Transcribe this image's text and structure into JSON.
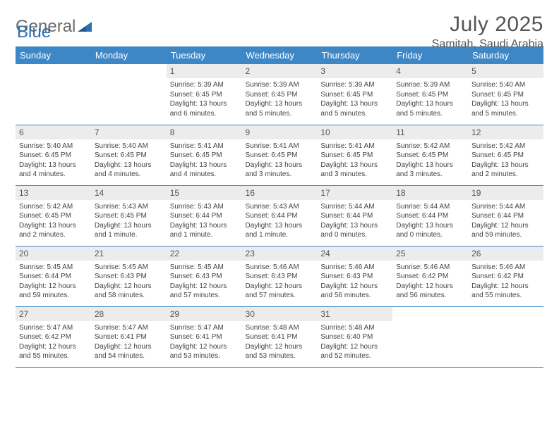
{
  "branding": {
    "logo_word1": "General",
    "logo_word2": "Blue",
    "logo_colors": {
      "word1": "#6b6b6b",
      "word2": "#2f6fb0",
      "mark": "#2f6fb0"
    }
  },
  "header": {
    "month_title": "July 2025",
    "location": "Samitah, Saudi Arabia"
  },
  "styling": {
    "header_bg": "#3d87c7",
    "header_text": "#ffffff",
    "day_band_bg": "#ececec",
    "row_border": "#3d87c7",
    "body_text": "#444444",
    "page_bg": "#ffffff",
    "title_fontsize": 30,
    "location_fontsize": 16,
    "th_fontsize": 13,
    "daynum_fontsize": 12,
    "cell_fontsize": 10
  },
  "weekdays": [
    "Sunday",
    "Monday",
    "Tuesday",
    "Wednesday",
    "Thursday",
    "Friday",
    "Saturday"
  ],
  "weeks": [
    [
      null,
      null,
      {
        "n": "1",
        "sunrise": "Sunrise: 5:39 AM",
        "sunset": "Sunset: 6:45 PM",
        "daylight": "Daylight: 13 hours and 6 minutes."
      },
      {
        "n": "2",
        "sunrise": "Sunrise: 5:39 AM",
        "sunset": "Sunset: 6:45 PM",
        "daylight": "Daylight: 13 hours and 5 minutes."
      },
      {
        "n": "3",
        "sunrise": "Sunrise: 5:39 AM",
        "sunset": "Sunset: 6:45 PM",
        "daylight": "Daylight: 13 hours and 5 minutes."
      },
      {
        "n": "4",
        "sunrise": "Sunrise: 5:39 AM",
        "sunset": "Sunset: 6:45 PM",
        "daylight": "Daylight: 13 hours and 5 minutes."
      },
      {
        "n": "5",
        "sunrise": "Sunrise: 5:40 AM",
        "sunset": "Sunset: 6:45 PM",
        "daylight": "Daylight: 13 hours and 5 minutes."
      }
    ],
    [
      {
        "n": "6",
        "sunrise": "Sunrise: 5:40 AM",
        "sunset": "Sunset: 6:45 PM",
        "daylight": "Daylight: 13 hours and 4 minutes."
      },
      {
        "n": "7",
        "sunrise": "Sunrise: 5:40 AM",
        "sunset": "Sunset: 6:45 PM",
        "daylight": "Daylight: 13 hours and 4 minutes."
      },
      {
        "n": "8",
        "sunrise": "Sunrise: 5:41 AM",
        "sunset": "Sunset: 6:45 PM",
        "daylight": "Daylight: 13 hours and 4 minutes."
      },
      {
        "n": "9",
        "sunrise": "Sunrise: 5:41 AM",
        "sunset": "Sunset: 6:45 PM",
        "daylight": "Daylight: 13 hours and 3 minutes."
      },
      {
        "n": "10",
        "sunrise": "Sunrise: 5:41 AM",
        "sunset": "Sunset: 6:45 PM",
        "daylight": "Daylight: 13 hours and 3 minutes."
      },
      {
        "n": "11",
        "sunrise": "Sunrise: 5:42 AM",
        "sunset": "Sunset: 6:45 PM",
        "daylight": "Daylight: 13 hours and 3 minutes."
      },
      {
        "n": "12",
        "sunrise": "Sunrise: 5:42 AM",
        "sunset": "Sunset: 6:45 PM",
        "daylight": "Daylight: 13 hours and 2 minutes."
      }
    ],
    [
      {
        "n": "13",
        "sunrise": "Sunrise: 5:42 AM",
        "sunset": "Sunset: 6:45 PM",
        "daylight": "Daylight: 13 hours and 2 minutes."
      },
      {
        "n": "14",
        "sunrise": "Sunrise: 5:43 AM",
        "sunset": "Sunset: 6:45 PM",
        "daylight": "Daylight: 13 hours and 1 minute."
      },
      {
        "n": "15",
        "sunrise": "Sunrise: 5:43 AM",
        "sunset": "Sunset: 6:44 PM",
        "daylight": "Daylight: 13 hours and 1 minute."
      },
      {
        "n": "16",
        "sunrise": "Sunrise: 5:43 AM",
        "sunset": "Sunset: 6:44 PM",
        "daylight": "Daylight: 13 hours and 1 minute."
      },
      {
        "n": "17",
        "sunrise": "Sunrise: 5:44 AM",
        "sunset": "Sunset: 6:44 PM",
        "daylight": "Daylight: 13 hours and 0 minutes."
      },
      {
        "n": "18",
        "sunrise": "Sunrise: 5:44 AM",
        "sunset": "Sunset: 6:44 PM",
        "daylight": "Daylight: 13 hours and 0 minutes."
      },
      {
        "n": "19",
        "sunrise": "Sunrise: 5:44 AM",
        "sunset": "Sunset: 6:44 PM",
        "daylight": "Daylight: 12 hours and 59 minutes."
      }
    ],
    [
      {
        "n": "20",
        "sunrise": "Sunrise: 5:45 AM",
        "sunset": "Sunset: 6:44 PM",
        "daylight": "Daylight: 12 hours and 59 minutes."
      },
      {
        "n": "21",
        "sunrise": "Sunrise: 5:45 AM",
        "sunset": "Sunset: 6:43 PM",
        "daylight": "Daylight: 12 hours and 58 minutes."
      },
      {
        "n": "22",
        "sunrise": "Sunrise: 5:45 AM",
        "sunset": "Sunset: 6:43 PM",
        "daylight": "Daylight: 12 hours and 57 minutes."
      },
      {
        "n": "23",
        "sunrise": "Sunrise: 5:46 AM",
        "sunset": "Sunset: 6:43 PM",
        "daylight": "Daylight: 12 hours and 57 minutes."
      },
      {
        "n": "24",
        "sunrise": "Sunrise: 5:46 AM",
        "sunset": "Sunset: 6:43 PM",
        "daylight": "Daylight: 12 hours and 56 minutes."
      },
      {
        "n": "25",
        "sunrise": "Sunrise: 5:46 AM",
        "sunset": "Sunset: 6:42 PM",
        "daylight": "Daylight: 12 hours and 56 minutes."
      },
      {
        "n": "26",
        "sunrise": "Sunrise: 5:46 AM",
        "sunset": "Sunset: 6:42 PM",
        "daylight": "Daylight: 12 hours and 55 minutes."
      }
    ],
    [
      {
        "n": "27",
        "sunrise": "Sunrise: 5:47 AM",
        "sunset": "Sunset: 6:42 PM",
        "daylight": "Daylight: 12 hours and 55 minutes."
      },
      {
        "n": "28",
        "sunrise": "Sunrise: 5:47 AM",
        "sunset": "Sunset: 6:41 PM",
        "daylight": "Daylight: 12 hours and 54 minutes."
      },
      {
        "n": "29",
        "sunrise": "Sunrise: 5:47 AM",
        "sunset": "Sunset: 6:41 PM",
        "daylight": "Daylight: 12 hours and 53 minutes."
      },
      {
        "n": "30",
        "sunrise": "Sunrise: 5:48 AM",
        "sunset": "Sunset: 6:41 PM",
        "daylight": "Daylight: 12 hours and 53 minutes."
      },
      {
        "n": "31",
        "sunrise": "Sunrise: 5:48 AM",
        "sunset": "Sunset: 6:40 PM",
        "daylight": "Daylight: 12 hours and 52 minutes."
      },
      null,
      null
    ]
  ]
}
